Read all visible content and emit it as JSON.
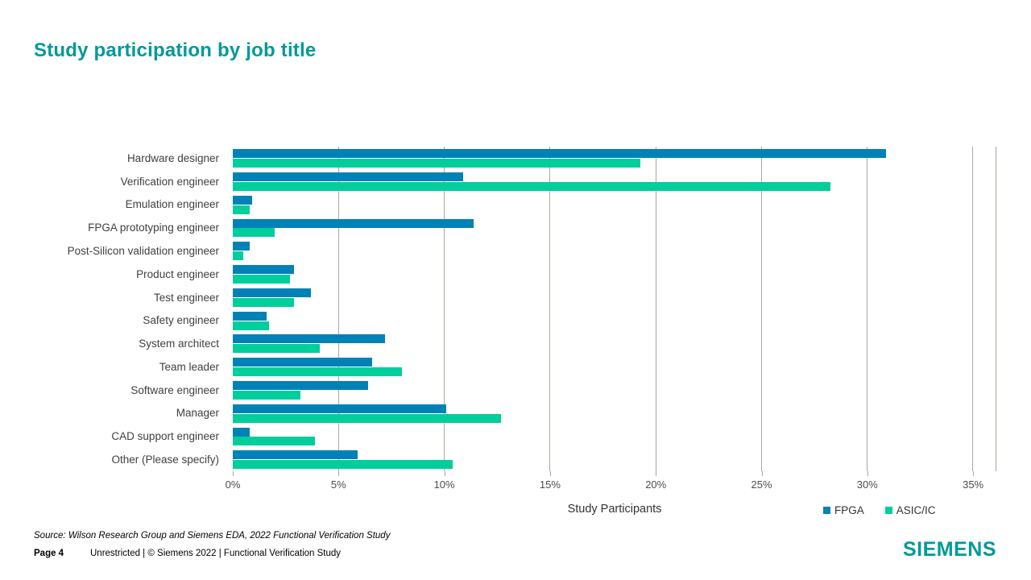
{
  "slide": {
    "title": "Study participation by job title",
    "footer": {
      "source": "Source:  Wilson Research Group and Siemens EDA, 2022 Functional Verification Study",
      "page_label": "Page 4",
      "classification": "Unrestricted | © Siemens 2022 |  Functional Verification Study",
      "logo_text": "SIEMENS"
    }
  },
  "colors": {
    "title_teal": "#009999",
    "fpga_blue": "#0082B6",
    "asic_green": "#00CE9B",
    "gridline": "#A9A99C",
    "axis_text": "#4D4D4D",
    "category_text": "#404040"
  },
  "chart_data": {
    "type": "bar",
    "orientation": "horizontal",
    "title": "",
    "xlabel": "Study Participants",
    "ylabel": "",
    "xlim": [
      0,
      36.1
    ],
    "x_tick_step": 5,
    "x_tick_labels": [
      "0%",
      "5%",
      "10%",
      "15%",
      "20%",
      "25%",
      "30%",
      "35%"
    ],
    "grid": true,
    "legend_position": "bottom-right",
    "categories": [
      "Hardware designer",
      "Verification engineer",
      "Emulation engineer",
      "FPGA prototyping engineer",
      "Post-Silicon validation engineer",
      "Product engineer",
      "Test engineer",
      "Safety engineer",
      "System architect",
      "Team leader",
      "Software engineer",
      "Manager",
      "CAD support engineer",
      "Other (Please specify)"
    ],
    "series": [
      {
        "name": "FPGA",
        "color": "#0082B6",
        "values": [
          30.9,
          10.9,
          0.9,
          11.4,
          0.8,
          2.9,
          3.7,
          1.6,
          7.2,
          6.6,
          6.4,
          10.1,
          0.8,
          5.9
        ]
      },
      {
        "name": "ASIC/IC",
        "color": "#00CE9B",
        "values": [
          19.3,
          28.3,
          0.8,
          2.0,
          0.5,
          2.7,
          2.9,
          1.7,
          4.1,
          8.0,
          3.2,
          12.7,
          3.9,
          10.4
        ]
      }
    ]
  }
}
